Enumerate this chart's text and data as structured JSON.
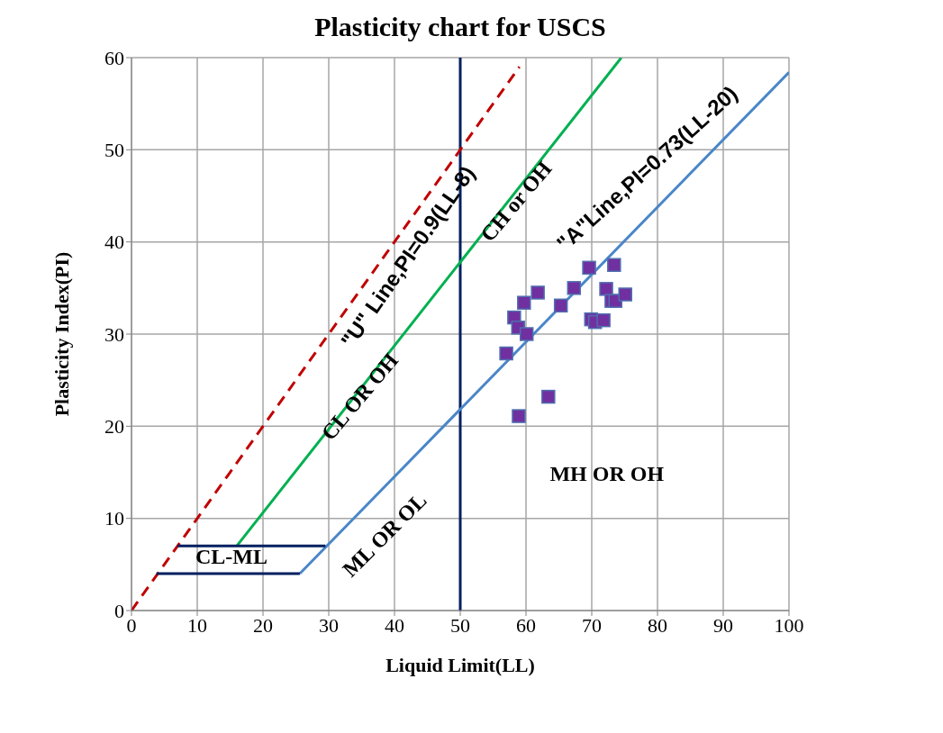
{
  "chart_data": {
    "type": "scatter",
    "title": "Plasticity chart for USCS",
    "xlabel": "Liquid Limit(LL)",
    "ylabel": "Plasticity Index(PI)",
    "xlim": [
      0,
      100
    ],
    "xticks": [
      0,
      10,
      20,
      30,
      40,
      50,
      60,
      70,
      80,
      90,
      100
    ],
    "ylim": [
      0,
      60
    ],
    "yticks": [
      0,
      10,
      20,
      30,
      40,
      50,
      60
    ],
    "grid": true,
    "series": [
      {
        "type": "line",
        "color": "#c00000",
        "line_style": "dashed",
        "marker": "none",
        "x": [
          0,
          59
        ],
        "values": [
          0,
          59
        ]
      },
      {
        "type": "line",
        "color": "#00b050",
        "line_style": "solid",
        "marker": "none",
        "x": [
          16,
          74.5
        ],
        "values": [
          7,
          60
        ]
      },
      {
        "type": "line",
        "color": "#4a86c8",
        "line_style": "solid",
        "marker": "none",
        "x": [
          25.6,
          100
        ],
        "values": [
          4,
          58.4
        ]
      },
      {
        "type": "line",
        "color": "#002060",
        "line_style": "solid",
        "marker": "none",
        "x": [
          7,
          29.5
        ],
        "values": [
          7,
          7
        ]
      },
      {
        "type": "line",
        "color": "#002060",
        "line_style": "solid",
        "marker": "none",
        "x": [
          3.8,
          25.6
        ],
        "values": [
          4,
          4
        ]
      },
      {
        "color": "#7030a0",
        "marker": "square",
        "x": [
          57,
          58.2,
          58.8,
          60.1,
          59.7,
          61.8,
          58.9,
          63.4,
          65.3,
          67.3,
          69.6,
          73.4,
          69.9,
          70.5,
          71.8,
          72.2,
          73,
          73.6,
          75.1
        ],
        "values": [
          27.9,
          31.8,
          30.7,
          30,
          33.4,
          34.5,
          21.1,
          23.2,
          33.1,
          35,
          37.2,
          37.5,
          31.6,
          31.3,
          31.5,
          34.9,
          33.6,
          33.6,
          34.3
        ]
      }
    ],
    "ref_lines": [
      {
        "axis": "x",
        "value": 50,
        "color": "#002060"
      }
    ],
    "annotations": [
      "\"U\" Line,PI=0.9(LL-8)",
      "CH or OH",
      "\"A\"Line,PI=0.73(LL-20)",
      "CL OR OH",
      "MH OR OH",
      "ML OR OL",
      "CL-ML"
    ]
  }
}
